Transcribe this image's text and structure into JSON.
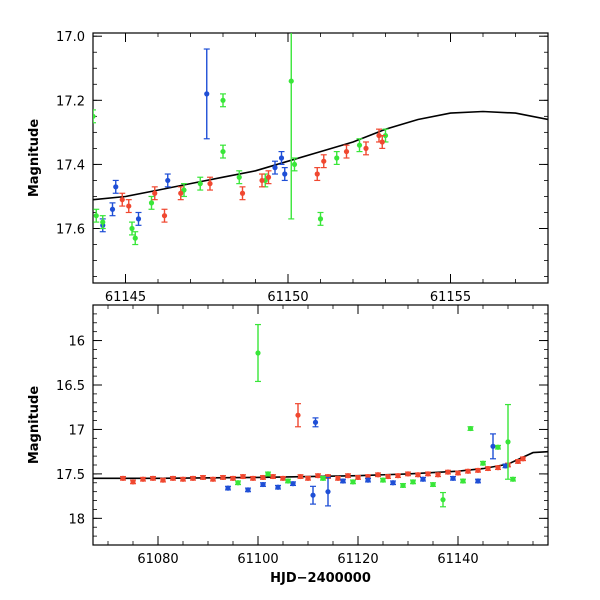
{
  "chart_data": [
    {
      "type": "scatter",
      "name": "zoomed-light-curve",
      "xlabel": "",
      "ylabel": "Magnitude",
      "xlim": [
        61144.0,
        61158.0
      ],
      "ylim": [
        17.77,
        16.99
      ],
      "y_inverted": true,
      "xticks": [
        61145,
        61150,
        61155
      ],
      "yticks": [
        17.0,
        17.2,
        17.4,
        17.6
      ],
      "model_curve": {
        "x": [
          61144.0,
          61145.0,
          61146.0,
          61147.0,
          61148.0,
          61149.0,
          61150.0,
          61151.0,
          61152.0,
          61153.0,
          61154.0,
          61155.0,
          61156.0,
          61157.0,
          61158.0
        ],
        "y": [
          17.51,
          17.5,
          17.48,
          17.46,
          17.44,
          17.42,
          17.39,
          17.36,
          17.33,
          17.29,
          17.26,
          17.24,
          17.235,
          17.24,
          17.26
        ]
      },
      "series": [
        {
          "name": "blue",
          "color": "#1f4fd6",
          "points": [
            {
              "x": 61144.3,
              "y": 17.59,
              "err": 0.02
            },
            {
              "x": 61144.6,
              "y": 17.54,
              "err": 0.02
            },
            {
              "x": 61144.7,
              "y": 17.47,
              "err": 0.02
            },
            {
              "x": 61145.4,
              "y": 17.57,
              "err": 0.02
            },
            {
              "x": 61146.3,
              "y": 17.45,
              "err": 0.02
            },
            {
              "x": 61147.5,
              "y": 17.18,
              "err": 0.14
            },
            {
              "x": 61149.6,
              "y": 17.41,
              "err": 0.02
            },
            {
              "x": 61149.8,
              "y": 17.38,
              "err": 0.02
            },
            {
              "x": 61149.9,
              "y": 17.43,
              "err": 0.02
            }
          ]
        },
        {
          "name": "green",
          "color": "#39e639",
          "points": [
            {
              "x": 61144.0,
              "y": 17.25,
              "err": 0.02
            },
            {
              "x": 61144.1,
              "y": 17.56,
              "err": 0.02
            },
            {
              "x": 61144.3,
              "y": 17.58,
              "err": 0.02
            },
            {
              "x": 61145.2,
              "y": 17.6,
              "err": 0.02
            },
            {
              "x": 61145.3,
              "y": 17.63,
              "err": 0.02
            },
            {
              "x": 61145.8,
              "y": 17.52,
              "err": 0.02
            },
            {
              "x": 61146.8,
              "y": 17.48,
              "err": 0.02
            },
            {
              "x": 61147.3,
              "y": 17.46,
              "err": 0.02
            },
            {
              "x": 61148.0,
              "y": 17.2,
              "err": 0.02
            },
            {
              "x": 61148.0,
              "y": 17.36,
              "err": 0.02
            },
            {
              "x": 61148.5,
              "y": 17.44,
              "err": 0.02
            },
            {
              "x": 61149.3,
              "y": 17.45,
              "err": 0.02
            },
            {
              "x": 61150.1,
              "y": 17.14,
              "err": 0.43
            },
            {
              "x": 61150.2,
              "y": 17.4,
              "err": 0.02
            },
            {
              "x": 61151.0,
              "y": 17.57,
              "err": 0.02
            },
            {
              "x": 61151.5,
              "y": 17.38,
              "err": 0.02
            },
            {
              "x": 61152.2,
              "y": 17.34,
              "err": 0.02
            },
            {
              "x": 61153.0,
              "y": 17.31,
              "err": 0.02
            }
          ]
        },
        {
          "name": "red",
          "color": "#f04830",
          "points": [
            {
              "x": 61144.9,
              "y": 17.51,
              "err": 0.02
            },
            {
              "x": 61145.1,
              "y": 17.53,
              "err": 0.02
            },
            {
              "x": 61145.9,
              "y": 17.49,
              "err": 0.02
            },
            {
              "x": 61146.2,
              "y": 17.56,
              "err": 0.02
            },
            {
              "x": 61146.7,
              "y": 17.49,
              "err": 0.02
            },
            {
              "x": 61147.6,
              "y": 17.46,
              "err": 0.02
            },
            {
              "x": 61148.6,
              "y": 17.49,
              "err": 0.02
            },
            {
              "x": 61149.2,
              "y": 17.45,
              "err": 0.02
            },
            {
              "x": 61149.4,
              "y": 17.44,
              "err": 0.02
            },
            {
              "x": 61150.9,
              "y": 17.43,
              "err": 0.02
            },
            {
              "x": 61151.1,
              "y": 17.39,
              "err": 0.02
            },
            {
              "x": 61151.8,
              "y": 17.36,
              "err": 0.02
            },
            {
              "x": 61152.4,
              "y": 17.35,
              "err": 0.02
            },
            {
              "x": 61152.8,
              "y": 17.31,
              "err": 0.02
            },
            {
              "x": 61152.9,
              "y": 17.33,
              "err": 0.02
            }
          ]
        }
      ]
    },
    {
      "type": "scatter",
      "name": "full-light-curve",
      "xlabel": "HJD−2400000",
      "ylabel": "Magnitude",
      "xlim": [
        61067.0,
        61158.0
      ],
      "ylim": [
        18.3,
        15.6
      ],
      "y_inverted": true,
      "xticks": [
        61080,
        61100,
        61120,
        61140
      ],
      "yticks": [
        16.0,
        16.5,
        17.0,
        17.5,
        18.0
      ],
      "ytick_labels": [
        "16",
        "16.5",
        "17",
        "17.5",
        "18"
      ],
      "model_curve": {
        "x": [
          61067,
          61080,
          61100,
          61120,
          61130,
          61140,
          61145,
          61150,
          61155,
          61158
        ],
        "y": [
          17.55,
          17.55,
          17.54,
          17.52,
          17.5,
          17.47,
          17.44,
          17.39,
          17.26,
          17.25
        ]
      },
      "series": [
        {
          "name": "red",
          "color": "#f04830",
          "points": [
            {
              "x": 61073,
              "y": 17.55,
              "err": 0.02
            },
            {
              "x": 61075,
              "y": 17.59,
              "err": 0.02
            },
            {
              "x": 61077,
              "y": 17.56,
              "err": 0.02
            },
            {
              "x": 61079,
              "y": 17.55,
              "err": 0.02
            },
            {
              "x": 61081,
              "y": 17.57,
              "err": 0.02
            },
            {
              "x": 61083,
              "y": 17.55,
              "err": 0.02
            },
            {
              "x": 61085,
              "y": 17.56,
              "err": 0.02
            },
            {
              "x": 61087,
              "y": 17.55,
              "err": 0.02
            },
            {
              "x": 61089,
              "y": 17.54,
              "err": 0.02
            },
            {
              "x": 61091,
              "y": 17.56,
              "err": 0.02
            },
            {
              "x": 61093,
              "y": 17.54,
              "err": 0.02
            },
            {
              "x": 61095,
              "y": 17.55,
              "err": 0.02
            },
            {
              "x": 61097,
              "y": 17.53,
              "err": 0.02
            },
            {
              "x": 61099,
              "y": 17.55,
              "err": 0.02
            },
            {
              "x": 61101,
              "y": 17.54,
              "err": 0.02
            },
            {
              "x": 61103,
              "y": 17.53,
              "err": 0.02
            },
            {
              "x": 61105,
              "y": 17.55,
              "err": 0.02
            },
            {
              "x": 61108,
              "y": 16.84,
              "err": 0.13
            },
            {
              "x": 61108.5,
              "y": 17.53,
              "err": 0.02
            },
            {
              "x": 61110,
              "y": 17.55,
              "err": 0.02
            },
            {
              "x": 61112,
              "y": 17.52,
              "err": 0.02
            },
            {
              "x": 61114,
              "y": 17.53,
              "err": 0.02
            },
            {
              "x": 61116,
              "y": 17.55,
              "err": 0.02
            },
            {
              "x": 61118,
              "y": 17.52,
              "err": 0.02
            },
            {
              "x": 61120,
              "y": 17.54,
              "err": 0.02
            },
            {
              "x": 61122,
              "y": 17.53,
              "err": 0.02
            },
            {
              "x": 61124,
              "y": 17.51,
              "err": 0.02
            },
            {
              "x": 61126,
              "y": 17.53,
              "err": 0.02
            },
            {
              "x": 61128,
              "y": 17.52,
              "err": 0.02
            },
            {
              "x": 61130,
              "y": 17.5,
              "err": 0.02
            },
            {
              "x": 61132,
              "y": 17.51,
              "err": 0.02
            },
            {
              "x": 61134,
              "y": 17.5,
              "err": 0.02
            },
            {
              "x": 61136,
              "y": 17.51,
              "err": 0.02
            },
            {
              "x": 61138,
              "y": 17.48,
              "err": 0.02
            },
            {
              "x": 61140,
              "y": 17.49,
              "err": 0.02
            },
            {
              "x": 61142,
              "y": 17.47,
              "err": 0.02
            },
            {
              "x": 61144,
              "y": 17.46,
              "err": 0.02
            },
            {
              "x": 61146,
              "y": 17.44,
              "err": 0.02
            },
            {
              "x": 61148,
              "y": 17.43,
              "err": 0.02
            },
            {
              "x": 61150,
              "y": 17.4,
              "err": 0.02
            },
            {
              "x": 61152,
              "y": 17.36,
              "err": 0.02
            },
            {
              "x": 61153,
              "y": 17.33,
              "err": 0.02
            }
          ]
        },
        {
          "name": "blue",
          "color": "#1f4fd6",
          "points": [
            {
              "x": 61094,
              "y": 17.66,
              "err": 0.02
            },
            {
              "x": 61098,
              "y": 17.68,
              "err": 0.02
            },
            {
              "x": 61101,
              "y": 17.62,
              "err": 0.02
            },
            {
              "x": 61104,
              "y": 17.65,
              "err": 0.02
            },
            {
              "x": 61107,
              "y": 17.61,
              "err": 0.02
            },
            {
              "x": 61111,
              "y": 17.74,
              "err": 0.1
            },
            {
              "x": 61111.5,
              "y": 16.92,
              "err": 0.05
            },
            {
              "x": 61114,
              "y": 17.7,
              "err": 0.16
            },
            {
              "x": 61117,
              "y": 17.58,
              "err": 0.02
            },
            {
              "x": 61122,
              "y": 17.57,
              "err": 0.02
            },
            {
              "x": 61127,
              "y": 17.6,
              "err": 0.02
            },
            {
              "x": 61133,
              "y": 17.56,
              "err": 0.02
            },
            {
              "x": 61139,
              "y": 17.55,
              "err": 0.02
            },
            {
              "x": 61144,
              "y": 17.58,
              "err": 0.02
            },
            {
              "x": 61147,
              "y": 17.19,
              "err": 0.14
            },
            {
              "x": 61149.5,
              "y": 17.41,
              "err": 0.02
            }
          ]
        },
        {
          "name": "green",
          "color": "#39e639",
          "points": [
            {
              "x": 61096,
              "y": 17.6,
              "err": 0.02
            },
            {
              "x": 61100,
              "y": 16.14,
              "err": 0.32
            },
            {
              "x": 61102,
              "y": 17.5,
              "err": 0.02
            },
            {
              "x": 61106,
              "y": 17.58,
              "err": 0.02
            },
            {
              "x": 61113,
              "y": 17.55,
              "err": 0.02
            },
            {
              "x": 61119,
              "y": 17.59,
              "err": 0.02
            },
            {
              "x": 61125,
              "y": 17.57,
              "err": 0.02
            },
            {
              "x": 61129,
              "y": 17.63,
              "err": 0.02
            },
            {
              "x": 61131,
              "y": 17.59,
              "err": 0.02
            },
            {
              "x": 61135,
              "y": 17.62,
              "err": 0.02
            },
            {
              "x": 61137,
              "y": 17.79,
              "err": 0.08
            },
            {
              "x": 61141,
              "y": 17.58,
              "err": 0.02
            },
            {
              "x": 61142.5,
              "y": 16.99,
              "err": 0.02
            },
            {
              "x": 61145,
              "y": 17.38,
              "err": 0.02
            },
            {
              "x": 61148,
              "y": 17.2,
              "err": 0.02
            },
            {
              "x": 61150,
              "y": 17.14,
              "err": 0.42
            },
            {
              "x": 61151,
              "y": 17.56,
              "err": 0.02
            }
          ]
        }
      ]
    }
  ]
}
